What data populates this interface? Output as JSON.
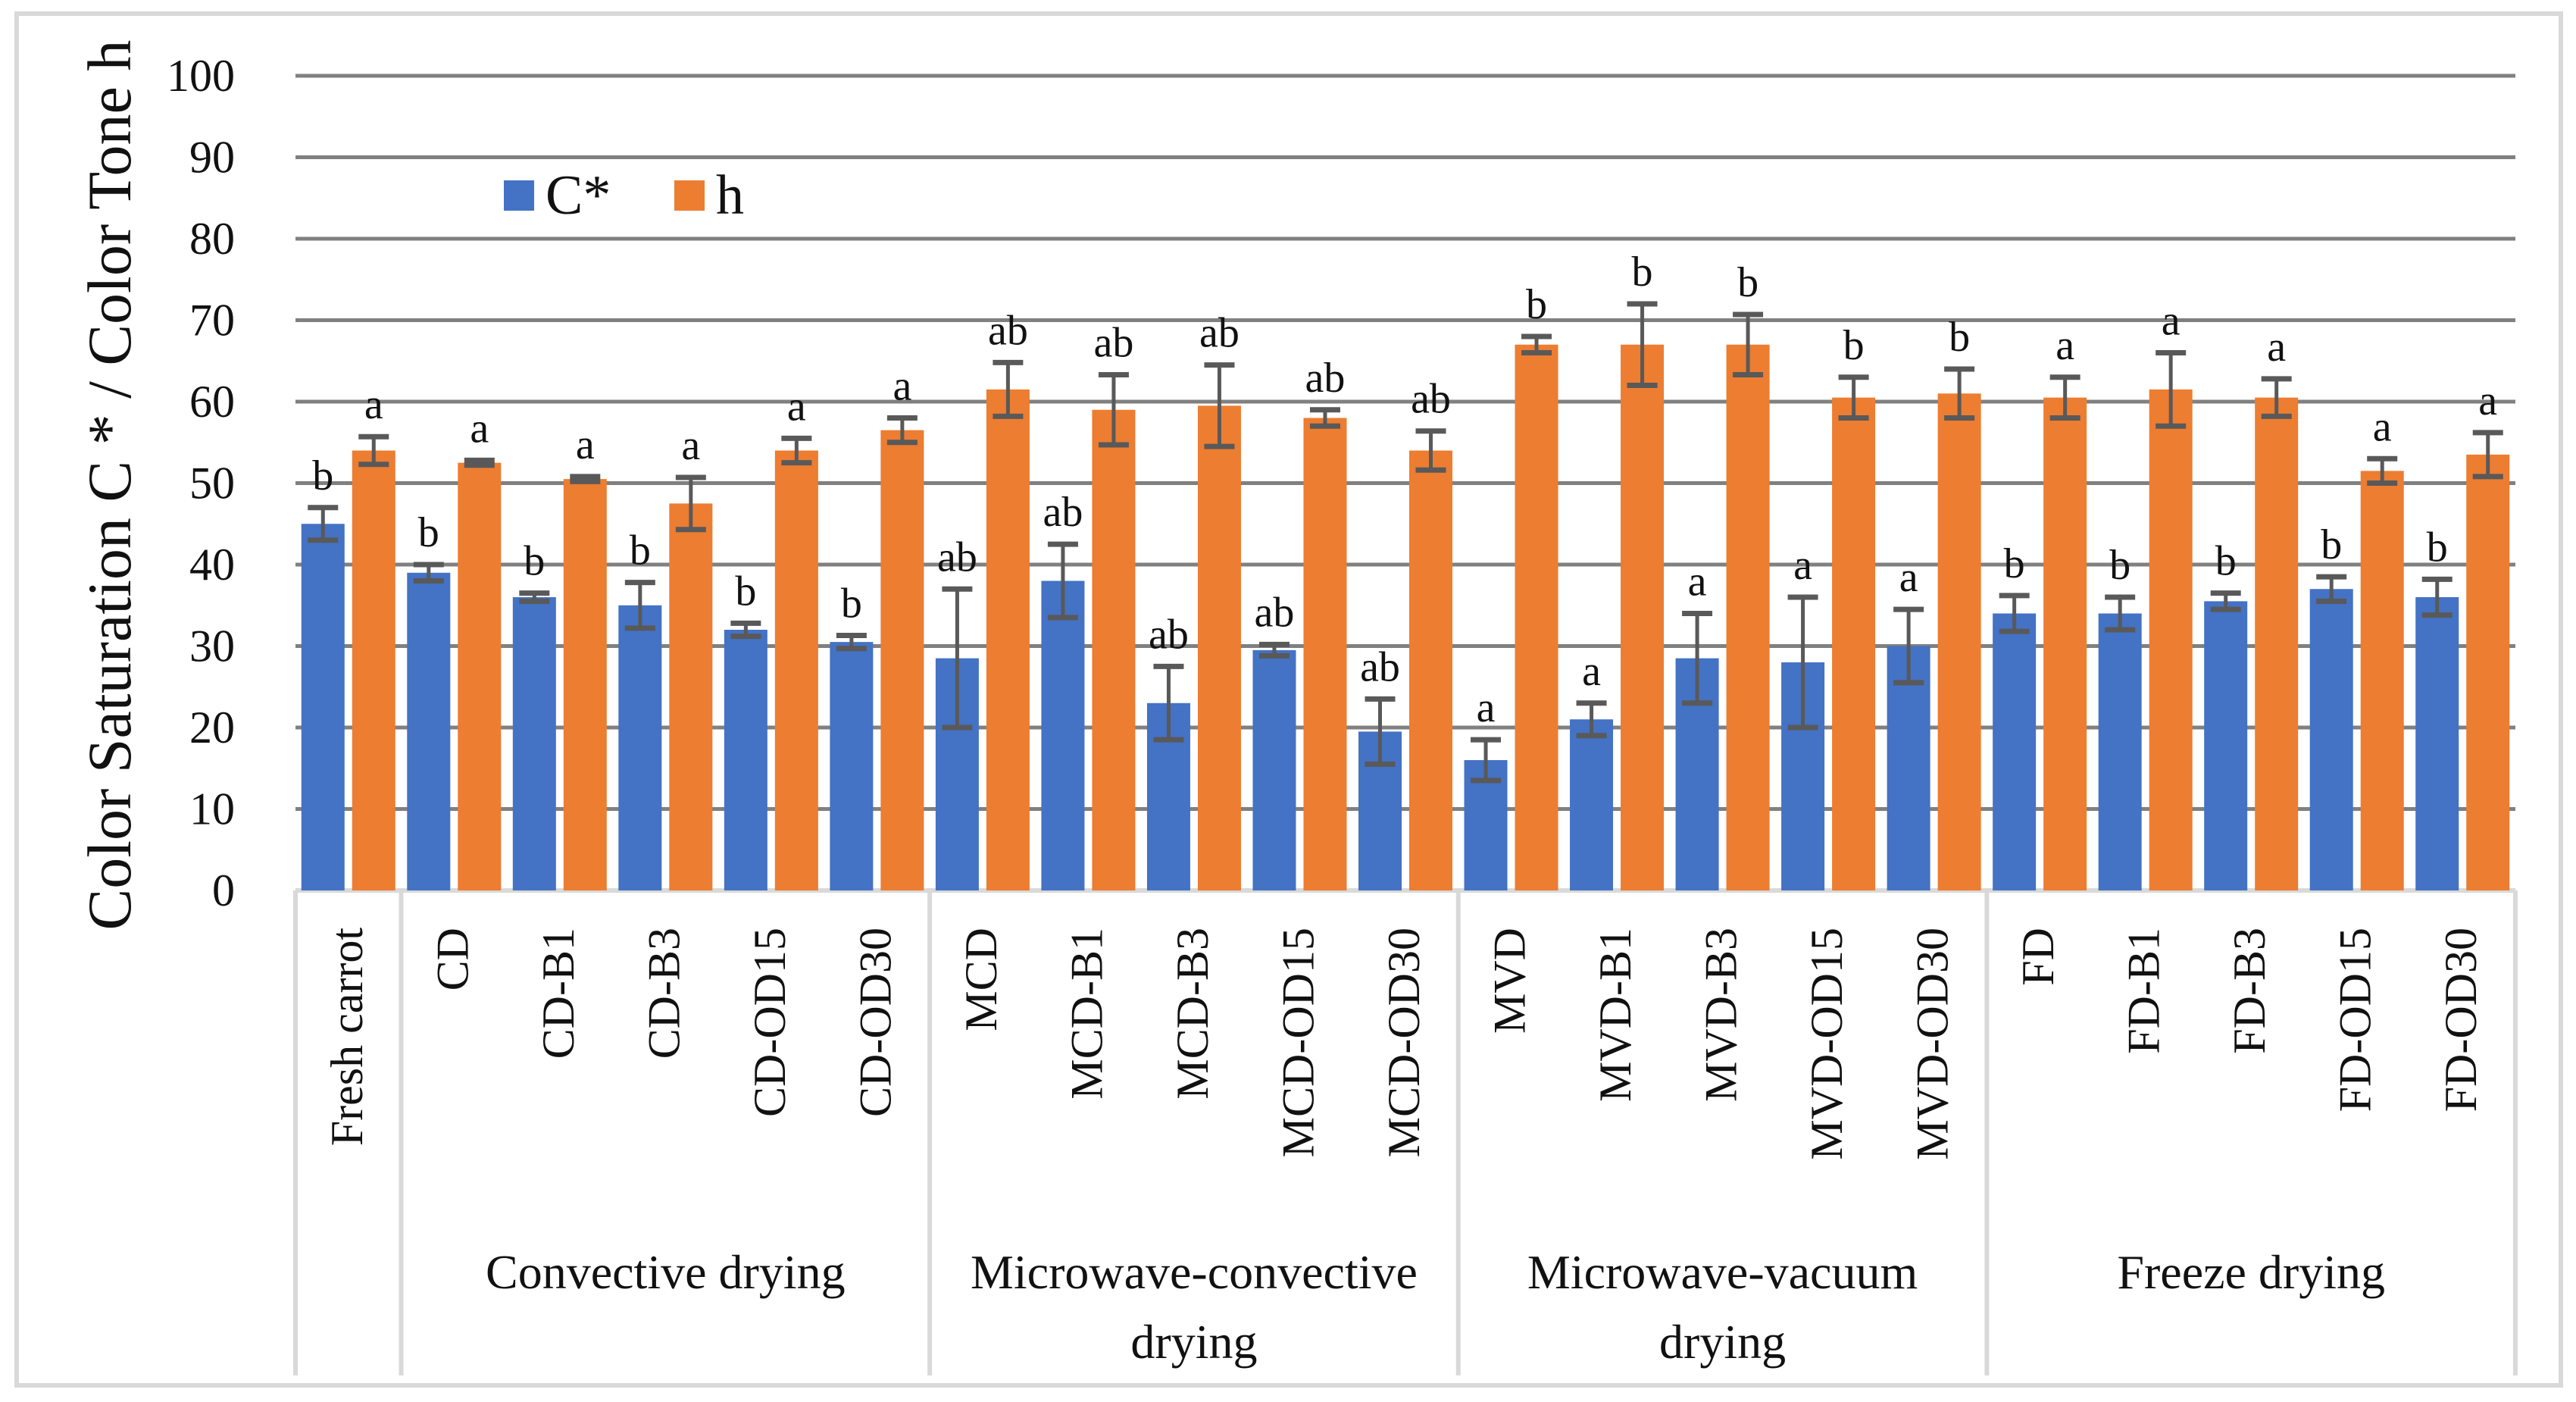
{
  "chart_data": {
    "type": "bar",
    "ylabel": "Color Saturation C * / Color Tone h",
    "ylim": [
      0,
      100
    ],
    "yticks": [
      "0",
      "10",
      "20",
      "30",
      "40",
      "50",
      "60",
      "70",
      "80",
      "90",
      "100"
    ],
    "grid": true,
    "legend_position": "top-left",
    "categories": [
      "Fresh carrot",
      "CD",
      "CD-B1",
      "CD-B3",
      "CD-OD15",
      "CD-OD30",
      "MCD",
      "MCD-B1",
      "MCD-B3",
      "MCD-OD15",
      "MCD-OD30",
      "MVD",
      "MVD-B1",
      "MVD-B3",
      "MVD-OD15",
      "MVD-OD30",
      "FD",
      "FD-B1",
      "FD-B3",
      "FD-OD15",
      "FD-OD30"
    ],
    "groups": [
      {
        "label": [
          "",
          ""
        ],
        "count": 1
      },
      {
        "label": [
          "Convective drying",
          ""
        ],
        "count": 5
      },
      {
        "label": [
          "Microwave-convective",
          "drying"
        ],
        "count": 5
      },
      {
        "label": [
          "Microwave-vacuum",
          "drying"
        ],
        "count": 5
      },
      {
        "label": [
          "Freeze drying",
          ""
        ],
        "count": 5
      }
    ],
    "series": [
      {
        "name": "C*",
        "color": "#4472C4",
        "values": [
          45,
          39,
          36,
          35,
          32,
          30.5,
          28.5,
          38,
          23,
          29.5,
          19.5,
          16,
          21,
          28.5,
          28,
          30,
          34,
          34,
          35.5,
          37,
          36
        ],
        "errors": [
          2,
          1,
          0.5,
          2.8,
          0.8,
          0.8,
          8.5,
          4.5,
          4.5,
          0.7,
          4,
          2.5,
          2,
          5.5,
          8,
          4.5,
          2.2,
          2,
          1,
          1.5,
          2.2
        ],
        "letters": [
          "b",
          "b",
          "b",
          "b",
          "b",
          "b",
          "ab",
          "ab",
          "ab",
          "ab",
          "ab",
          "a",
          "a",
          "a",
          "a",
          "a",
          "b",
          "b",
          "b",
          "b",
          "b"
        ]
      },
      {
        "name": "h",
        "color": "#ED7D31",
        "values": [
          54,
          52.5,
          50.5,
          47.5,
          54,
          56.5,
          61.5,
          59,
          59.5,
          58,
          54,
          67,
          67,
          67,
          60.5,
          61,
          60.5,
          61.5,
          60.5,
          51.5,
          53.5
        ],
        "errors": [
          1.7,
          0.3,
          0.3,
          3.2,
          1.5,
          1.5,
          3.3,
          4.3,
          5,
          1,
          2.4,
          1,
          5,
          3.7,
          2.5,
          3,
          2.5,
          4.5,
          2.3,
          1.5,
          2.7
        ],
        "letters": [
          "a",
          "a",
          "a",
          "a",
          "a",
          "a",
          "ab",
          "ab",
          "ab",
          "ab",
          "ab",
          "b",
          "b",
          "b",
          "b",
          "b",
          "a",
          "a",
          "a",
          "a",
          "a"
        ]
      }
    ]
  }
}
